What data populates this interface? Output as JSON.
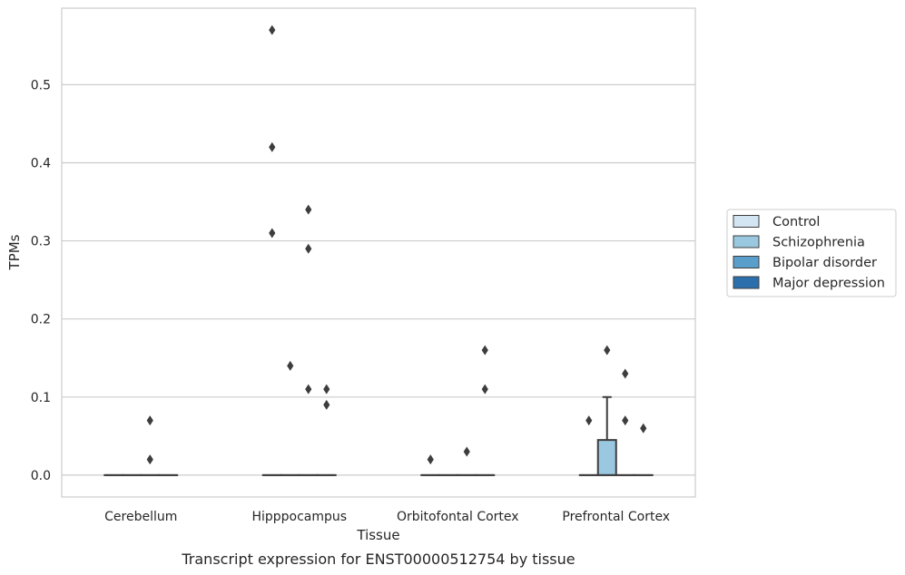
{
  "caption": "Transcript expression for ENST00000512754 by tissue",
  "chart_data": {
    "type": "box",
    "title": "",
    "xlabel": "Tissue",
    "ylabel": "TPMs",
    "ylim": [
      -0.028,
      0.598
    ],
    "yticks": [
      "0.0",
      "0.1",
      "0.2",
      "0.3",
      "0.4",
      "0.5"
    ],
    "ytick_values": [
      0.0,
      0.1,
      0.2,
      0.3,
      0.4,
      0.5
    ],
    "grid": "horizontal",
    "legend_placement": "right",
    "categories": [
      "Cerebellum",
      "Hipppocampus",
      "Orbitofontal Cortex",
      "Prefrontal Cortex"
    ],
    "series": [
      {
        "name": "Control",
        "color": "#d3e4f3",
        "boxes": [
          {
            "q1": 0,
            "median": 0,
            "q3": 0,
            "whisker_low": 0,
            "whisker_high": 0,
            "outliers": []
          },
          {
            "q1": 0,
            "median": 0,
            "q3": 0,
            "whisker_low": 0,
            "whisker_high": 0,
            "outliers": [
              0.57,
              0.42,
              0.31
            ]
          },
          {
            "q1": 0,
            "median": 0,
            "q3": 0,
            "whisker_low": 0,
            "whisker_high": 0,
            "outliers": [
              0.02
            ]
          },
          {
            "q1": 0,
            "median": 0,
            "q3": 0,
            "whisker_low": 0,
            "whisker_high": 0,
            "outliers": [
              0.07
            ]
          }
        ]
      },
      {
        "name": "Schizophrenia",
        "color": "#9ac8e0",
        "boxes": [
          {
            "q1": 0,
            "median": 0,
            "q3": 0,
            "whisker_low": 0,
            "whisker_high": 0,
            "outliers": []
          },
          {
            "q1": 0,
            "median": 0,
            "q3": 0,
            "whisker_low": 0,
            "whisker_high": 0,
            "outliers": [
              0.14
            ]
          },
          {
            "q1": 0,
            "median": 0,
            "q3": 0,
            "whisker_low": 0,
            "whisker_high": 0,
            "outliers": []
          },
          {
            "q1": 0,
            "median": 0,
            "q3": 0.045,
            "whisker_low": 0,
            "whisker_high": 0.1,
            "outliers": [
              0.16
            ]
          }
        ]
      },
      {
        "name": "Bipolar disorder",
        "color": "#5a9fcc",
        "boxes": [
          {
            "q1": 0,
            "median": 0,
            "q3": 0,
            "whisker_low": 0,
            "whisker_high": 0,
            "outliers": [
              0.02,
              0.07
            ]
          },
          {
            "q1": 0,
            "median": 0,
            "q3": 0,
            "whisker_low": 0,
            "whisker_high": 0,
            "outliers": [
              0.34,
              0.29,
              0.11
            ]
          },
          {
            "q1": 0,
            "median": 0,
            "q3": 0,
            "whisker_low": 0,
            "whisker_high": 0,
            "outliers": [
              0.03
            ]
          },
          {
            "q1": 0,
            "median": 0,
            "q3": 0,
            "whisker_low": 0,
            "whisker_high": 0,
            "outliers": [
              0.13,
              0.07
            ]
          }
        ]
      },
      {
        "name": "Major depression",
        "color": "#2c6fad",
        "boxes": [
          {
            "q1": 0,
            "median": 0,
            "q3": 0,
            "whisker_low": 0,
            "whisker_high": 0,
            "outliers": []
          },
          {
            "q1": 0,
            "median": 0,
            "q3": 0,
            "whisker_low": 0,
            "whisker_high": 0,
            "outliers": [
              0.11,
              0.09
            ]
          },
          {
            "q1": 0,
            "median": 0,
            "q3": 0,
            "whisker_low": 0,
            "whisker_high": 0,
            "outliers": [
              0.16,
              0.11
            ]
          },
          {
            "q1": 0,
            "median": 0,
            "q3": 0,
            "whisker_low": 0,
            "whisker_high": 0,
            "outliers": [
              0.06
            ]
          }
        ]
      }
    ]
  }
}
